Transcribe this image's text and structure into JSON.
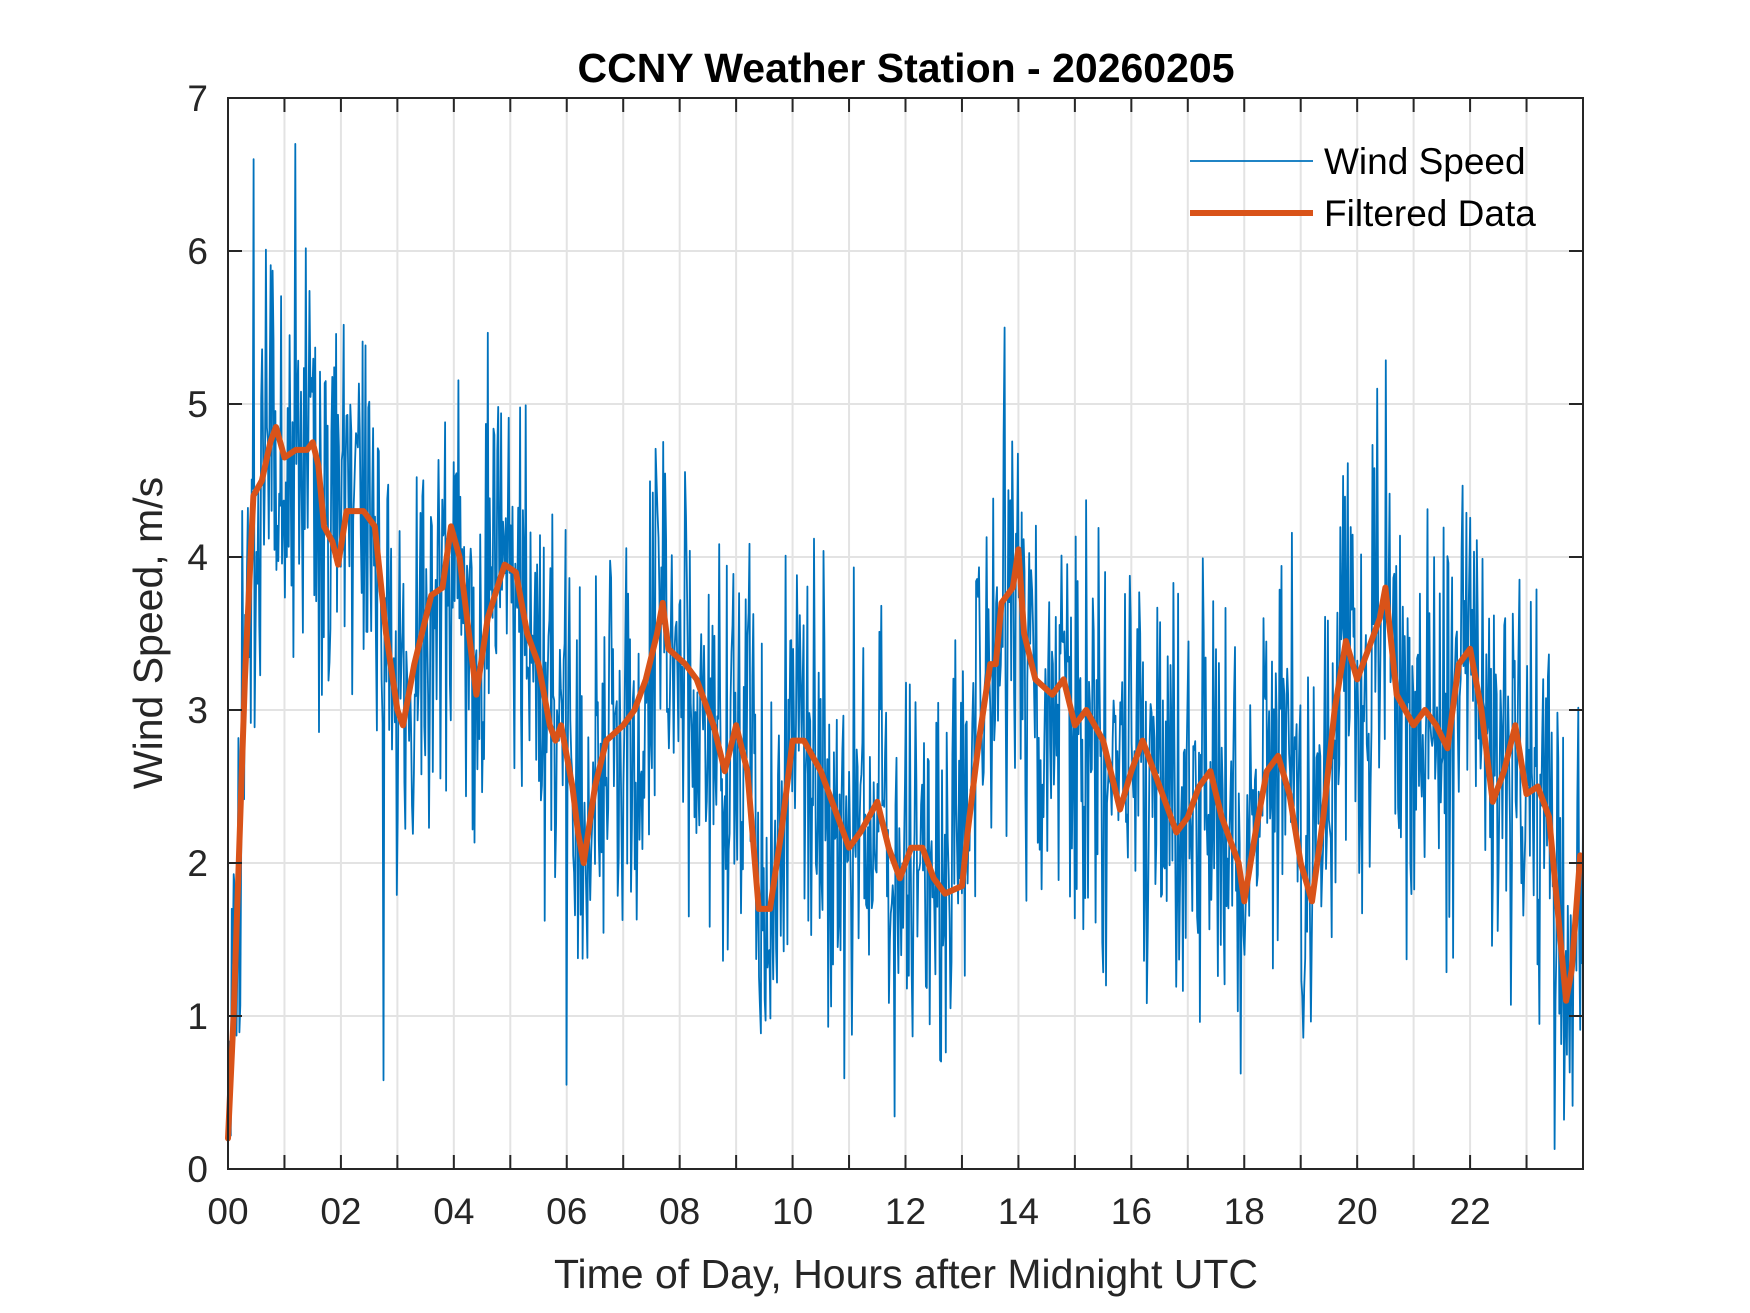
{
  "chart_data": {
    "type": "line",
    "title": "CCNY Weather Station - 20260205",
    "xlabel": "Time of Day, Hours after Midnight UTC",
    "ylabel": "Wind Speed, m/s",
    "xlim": [
      0,
      24
    ],
    "ylim": [
      0,
      7
    ],
    "grid": true,
    "x_minor_grid_step_hours": 1,
    "xticks": [
      0,
      2,
      4,
      6,
      8,
      10,
      12,
      14,
      16,
      18,
      20,
      22
    ],
    "xtick_labels": [
      "00",
      "02",
      "04",
      "06",
      "08",
      "10",
      "12",
      "14",
      "16",
      "18",
      "20",
      "22"
    ],
    "yticks": [
      0,
      1,
      2,
      3,
      4,
      5,
      6,
      7
    ],
    "ytick_labels": [
      "0",
      "1",
      "2",
      "3",
      "4",
      "5",
      "6",
      "7"
    ],
    "legend": {
      "placement": "top-right",
      "boxed": false
    },
    "series": [
      {
        "name": "Wind Speed",
        "color": "#0072BD",
        "style": "thin",
        "description": "Raw 1-minute wind speed, highly noisy around the filtered curve (about ±1.2 m/s)",
        "noise_amplitude": 1.25,
        "noted_extremes": [
          {
            "x": 1.2,
            "y": 6.7
          },
          {
            "x": 0.45,
            "y": 6.6
          },
          {
            "x": 13.75,
            "y": 5.5
          },
          {
            "x": 20.35,
            "y": 5.1
          },
          {
            "x": 2.75,
            "y": 0.58
          },
          {
            "x": 6.0,
            "y": 0.55
          },
          {
            "x": 23.5,
            "y": 0.13
          }
        ]
      },
      {
        "name": "Filtered Data",
        "color": "#D95319",
        "style": "thick",
        "x": [
          0,
          0.1,
          0.3,
          0.45,
          0.6,
          0.75,
          0.85,
          1.0,
          1.2,
          1.4,
          1.5,
          1.6,
          1.7,
          1.85,
          1.95,
          2.1,
          2.4,
          2.6,
          2.8,
          3.0,
          3.1,
          3.3,
          3.6,
          3.8,
          3.95,
          4.1,
          4.3,
          4.4,
          4.6,
          4.9,
          5.1,
          5.3,
          5.5,
          5.7,
          5.8,
          5.9,
          6.1,
          6.2,
          6.3,
          6.5,
          6.7,
          7.0,
          7.2,
          7.4,
          7.6,
          7.7,
          7.8,
          8.1,
          8.3,
          8.6,
          8.8,
          9.0,
          9.2,
          9.4,
          9.6,
          9.8,
          10.0,
          10.2,
          10.5,
          10.7,
          11.0,
          11.2,
          11.5,
          11.7,
          11.9,
          12.1,
          12.3,
          12.5,
          12.7,
          13.0,
          13.1,
          13.3,
          13.5,
          13.6,
          13.7,
          13.9,
          14.0,
          14.1,
          14.3,
          14.6,
          14.8,
          15.0,
          15.2,
          15.5,
          15.7,
          15.8,
          16.0,
          16.2,
          16.5,
          16.8,
          17.0,
          17.2,
          17.4,
          17.6,
          17.9,
          18.0,
          18.2,
          18.4,
          18.6,
          18.8,
          19.0,
          19.2,
          19.4,
          19.6,
          19.8,
          20.0,
          20.2,
          20.4,
          20.5,
          20.7,
          21.0,
          21.2,
          21.4,
          21.6,
          21.8,
          22.0,
          22.2,
          22.4,
          22.6,
          22.8,
          23.0,
          23.2,
          23.4,
          23.6,
          23.7,
          23.8,
          23.95
        ],
        "y": [
          0.2,
          1.0,
          3.2,
          4.4,
          4.5,
          4.75,
          4.85,
          4.65,
          4.7,
          4.7,
          4.75,
          4.6,
          4.2,
          4.1,
          3.95,
          4.3,
          4.3,
          4.2,
          3.5,
          3.0,
          2.9,
          3.3,
          3.75,
          3.8,
          4.2,
          4.0,
          3.4,
          3.1,
          3.6,
          3.95,
          3.9,
          3.5,
          3.3,
          2.9,
          2.8,
          2.9,
          2.5,
          2.2,
          2.0,
          2.5,
          2.8,
          2.9,
          3.0,
          3.2,
          3.5,
          3.7,
          3.4,
          3.3,
          3.2,
          2.9,
          2.6,
          2.9,
          2.6,
          1.7,
          1.7,
          2.2,
          2.8,
          2.8,
          2.6,
          2.4,
          2.1,
          2.2,
          2.4,
          2.1,
          1.9,
          2.1,
          2.1,
          1.9,
          1.8,
          1.85,
          2.2,
          2.8,
          3.3,
          3.3,
          3.7,
          3.8,
          4.05,
          3.5,
          3.2,
          3.1,
          3.2,
          2.9,
          3.0,
          2.8,
          2.5,
          2.35,
          2.6,
          2.8,
          2.5,
          2.2,
          2.3,
          2.5,
          2.6,
          2.3,
          2.0,
          1.75,
          2.2,
          2.6,
          2.7,
          2.45,
          2.0,
          1.75,
          2.3,
          3.0,
          3.45,
          3.2,
          3.4,
          3.6,
          3.8,
          3.1,
          2.9,
          3.0,
          2.9,
          2.75,
          3.3,
          3.4,
          3.0,
          2.4,
          2.6,
          2.9,
          2.45,
          2.5,
          2.3,
          1.5,
          1.1,
          1.3,
          2.05
        ]
      }
    ]
  }
}
